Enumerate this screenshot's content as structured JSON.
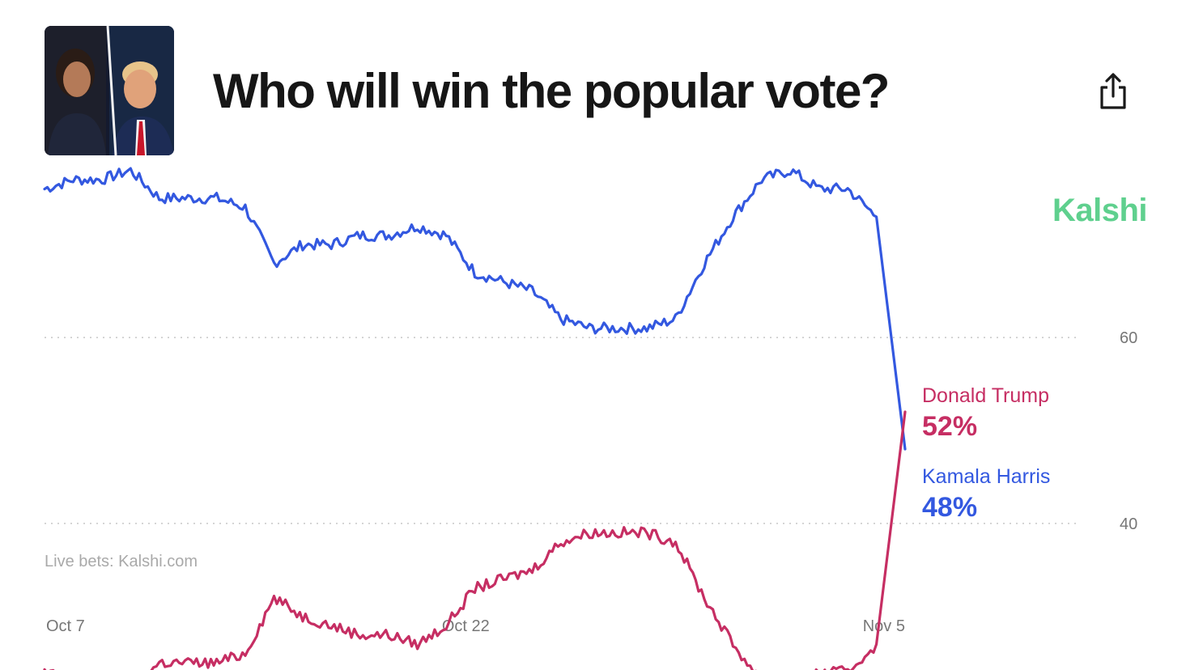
{
  "header": {
    "title": "Who will win the popular vote?",
    "image_alt": "Kamala Harris and Donald Trump"
  },
  "brand": {
    "name": "Kalshi",
    "color": "#5fd08e"
  },
  "icons": {
    "share": "share-icon"
  },
  "colors": {
    "trump": "#c62e63",
    "harris": "#3358e0",
    "grid": "#c8c8c8"
  },
  "chart_data": {
    "type": "line",
    "title": "Who will win the popular vote?",
    "watermark": "Live bets: Kalshi.com",
    "x_ticks": [
      "Oct 7",
      "Oct 22",
      "Nov 5"
    ],
    "y_ticks": [
      60,
      40
    ],
    "ylim": [
      20,
      80
    ],
    "xlim": [
      "Oct 7",
      "Nov 5"
    ],
    "grid": "horizontal dotted",
    "legend": "right of chart",
    "x": [
      "Oct 7",
      "Oct 8",
      "Oct 9",
      "Oct 10",
      "Oct 11",
      "Oct 12",
      "Oct 13",
      "Oct 14",
      "Oct 15",
      "Oct 16",
      "Oct 17",
      "Oct 18",
      "Oct 19",
      "Oct 20",
      "Oct 21",
      "Oct 22",
      "Oct 23",
      "Oct 24",
      "Oct 25",
      "Oct 26",
      "Oct 27",
      "Oct 28",
      "Oct 29",
      "Oct 30",
      "Oct 31",
      "Nov 1",
      "Nov 2",
      "Nov 3",
      "Nov 4",
      "Nov 5",
      "Nov 5"
    ],
    "series": [
      {
        "name": "Kamala Harris",
        "color": "#3358e0",
        "current": "48%",
        "values": [
          76,
          77,
          77,
          78,
          75,
          75,
          75,
          74,
          68,
          70,
          70,
          71,
          71,
          72,
          71,
          67,
          66,
          65,
          62,
          61,
          61,
          61,
          62,
          68,
          73,
          77,
          78,
          76,
          76,
          73,
          48
        ]
      },
      {
        "name": "Donald Trump",
        "color": "#c62e63",
        "current": "52%",
        "values": [
          24,
          23,
          22,
          22,
          25,
          25,
          25,
          26,
          32,
          30,
          29,
          28,
          28,
          27,
          29,
          33,
          34,
          35,
          38,
          39,
          39,
          39,
          38,
          32,
          27,
          23,
          22,
          24,
          24,
          27,
          52
        ]
      }
    ]
  }
}
